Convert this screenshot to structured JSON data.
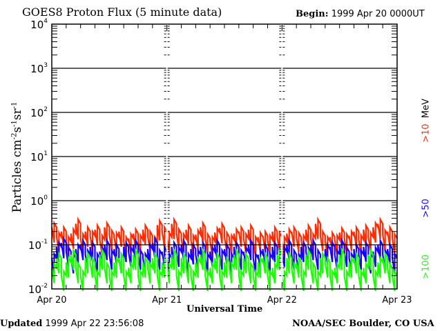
{
  "chart_data": {
    "type": "line",
    "title": "GOES8 Proton Flux (5 minute data)",
    "begin_label": "Begin:",
    "begin_value": "1999 Apr 20 0000UT",
    "xlabel": "Universal Time",
    "ylabel": "Particles cm",
    "ylabel_parts": [
      "Particles cm",
      "-2",
      "s",
      "-1",
      "sr",
      "-1"
    ],
    "yscale": "log",
    "ylim": [
      0.01,
      10000
    ],
    "yticks": [
      {
        "base": "10",
        "exp": "4",
        "value": 10000
      },
      {
        "base": "10",
        "exp": "3",
        "value": 1000
      },
      {
        "base": "10",
        "exp": "2",
        "value": 100
      },
      {
        "base": "10",
        "exp": "1",
        "value": 10
      },
      {
        "base": "10",
        "exp": "0",
        "value": 1
      },
      {
        "base": "10",
        "exp": "-1",
        "value": 0.1
      },
      {
        "base": "10",
        "exp": "-2",
        "value": 0.01
      }
    ],
    "xticks": [
      "Apr 20",
      "Apr 21",
      "Apr 22",
      "Apr 23"
    ],
    "x_unit": "hours since Apr 20 00:00 UT (hourly samples)",
    "grid": "horizontal lines at each decade",
    "series": [
      {
        "name": ">10",
        "unit": "MeV",
        "color": "#ff2a00",
        "values": [
          0.25,
          0.15,
          0.2,
          0.12,
          0.18,
          0.3,
          0.14,
          0.2,
          0.16,
          0.22,
          0.13,
          0.25,
          0.17,
          0.15,
          0.2,
          0.12,
          0.14,
          0.18,
          0.13,
          0.22,
          0.16,
          0.12,
          0.28,
          0.2,
          0.15,
          0.3,
          0.18,
          0.14,
          0.22,
          0.13,
          0.17,
          0.25,
          0.14,
          0.12,
          0.19,
          0.24,
          0.15,
          0.13,
          0.18,
          0.2,
          0.14,
          0.22,
          0.12,
          0.15,
          0.16,
          0.13,
          0.2,
          0.15,
          0.12,
          0.18,
          0.2,
          0.15,
          0.13,
          0.22,
          0.14,
          0.3,
          0.16,
          0.12,
          0.15,
          0.13,
          0.19,
          0.14,
          0.16,
          0.2,
          0.13,
          0.22,
          0.15,
          0.25,
          0.3,
          0.17,
          0.2,
          0.14
        ]
      },
      {
        "name": ">50",
        "color": "#1a00ff",
        "values": [
          0.05,
          0.09,
          0.11,
          0.07,
          0.05,
          0.08,
          0.1,
          0.06,
          0.09,
          0.05,
          0.07,
          0.1,
          0.06,
          0.08,
          0.05,
          0.09,
          0.07,
          0.1,
          0.06,
          0.05,
          0.08,
          0.11,
          0.06,
          0.07,
          0.05,
          0.09,
          0.07,
          0.1,
          0.05,
          0.08,
          0.06,
          0.09,
          0.05,
          0.07,
          0.1,
          0.06,
          0.08,
          0.05,
          0.09,
          0.06,
          0.07,
          0.1,
          0.05,
          0.06,
          0.08,
          0.05,
          0.09,
          0.06,
          0.07,
          0.1,
          0.06,
          0.05,
          0.09,
          0.07,
          0.1,
          0.06,
          0.05,
          0.08,
          0.09,
          0.06,
          0.1,
          0.07,
          0.05,
          0.08,
          0.06,
          0.09,
          0.05,
          0.07,
          0.1,
          0.06,
          0.08,
          0.05
        ]
      },
      {
        "name": ">100",
        "color": "#1aff00",
        "values": [
          0.03,
          0.05,
          0.02,
          0.04,
          0.06,
          0.03,
          0.02,
          0.05,
          0.04,
          0.02,
          0.06,
          0.03,
          0.02,
          0.04,
          0.05,
          0.02,
          0.03,
          0.06,
          0.02,
          0.04,
          0.03,
          0.05,
          0.02,
          0.04,
          0.03,
          0.06,
          0.02,
          0.05,
          0.03,
          0.02,
          0.04,
          0.06,
          0.02,
          0.03,
          0.05,
          0.02,
          0.04,
          0.03,
          0.06,
          0.02,
          0.05,
          0.03,
          0.02,
          0.04,
          0.05,
          0.02,
          0.03,
          0.06,
          0.02,
          0.05,
          0.03,
          0.04,
          0.02,
          0.06,
          0.03,
          0.02,
          0.05,
          0.04,
          0.02,
          0.03,
          0.06,
          0.02,
          0.04,
          0.05,
          0.02,
          0.03,
          0.06,
          0.02,
          0.04,
          0.05,
          0.03,
          0.02
        ]
      }
    ]
  },
  "footer": {
    "updated": "Updated 1999 Apr 22 23:56:08",
    "credit": "NOAA/SEC Boulder, CO USA"
  }
}
